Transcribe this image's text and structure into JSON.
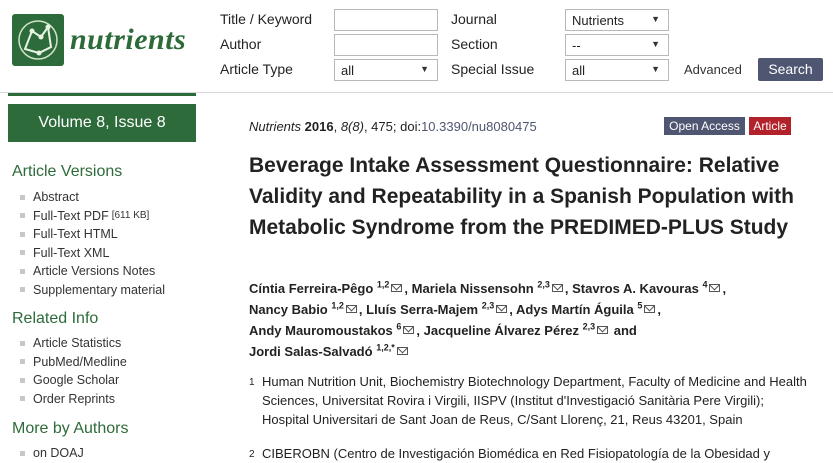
{
  "brand": {
    "name": "nutrients",
    "color": "#2e6b3a"
  },
  "search": {
    "title_keyword_label": "Title / Keyword",
    "author_label": "Author",
    "article_type_label": "Article Type",
    "article_type_value": "all",
    "journal_label": "Journal",
    "journal_value": "Nutrients",
    "section_label": "Section",
    "section_value": "--",
    "special_issue_label": "Special Issue",
    "special_issue_value": "all",
    "advanced_label": "Advanced",
    "search_button": "Search"
  },
  "sidebar": {
    "volume": "Volume 8, Issue 8",
    "article_versions_heading": "Article Versions",
    "article_versions": [
      {
        "label": "Abstract"
      },
      {
        "label": "Full-Text PDF",
        "note": "[611 KB]"
      },
      {
        "label": "Full-Text HTML"
      },
      {
        "label": "Full-Text XML"
      },
      {
        "label": "Article Versions Notes"
      },
      {
        "label": "Supplementary material"
      }
    ],
    "related_info_heading": "Related Info",
    "related_info": [
      {
        "label": "Article Statistics"
      },
      {
        "label": "PubMed/Medline"
      },
      {
        "label": "Google Scholar"
      },
      {
        "label": "Order Reprints"
      }
    ],
    "more_by_authors_heading": "More by Authors",
    "more_by_authors": [
      {
        "label": "on DOAJ"
      }
    ]
  },
  "article": {
    "journal": "Nutrients",
    "year": "2016",
    "volume_issue": "8(8)",
    "page": "475",
    "doi_prefix": "doi:",
    "doi": "10.3390/nu8080475",
    "badge_open_access": "Open Access",
    "badge_article": "Article",
    "title": "Beverage Intake Assessment Questionnaire: Relative Validity and Repeatability in a Spanish Population with Metabolic Syndrome from the PREDIMED-PLUS Study",
    "authors": [
      {
        "name": "Cíntia Ferreira-Pêgo",
        "sup": "1,2"
      },
      {
        "name": "Mariela Nissensohn",
        "sup": "2,3"
      },
      {
        "name": "Stavros A. Kavouras",
        "sup": "4"
      },
      {
        "name": "Nancy Babio",
        "sup": "1,2"
      },
      {
        "name": "Lluís Serra-Majem",
        "sup": "2,3"
      },
      {
        "name": "Adys Martín Águila",
        "sup": "5"
      },
      {
        "name": "Andy Mauromoustakos",
        "sup": "6"
      },
      {
        "name": "Jacqueline Álvarez Pérez",
        "sup": "2,3"
      },
      {
        "name": "Jordi Salas-Salvadó",
        "sup": "1,2,*"
      }
    ],
    "and_word": "and",
    "affiliations": [
      {
        "num": "1",
        "text": "Human Nutrition Unit, Biochemistry Biotechnology Department, Faculty of Medicine and Health Sciences, Universitat Rovira i Virgili, IISPV (Institut d'Investigació Sanitària Pere Virgili); Hospital Universitari de Sant Joan de Reus, C/Sant Llorenç, 21, Reus 43201, Spain"
      },
      {
        "num": "2",
        "text": "CIBEROBN (Centro de Investigación Biomédica en Red Fisiopatología de la Obesidad y"
      }
    ]
  }
}
